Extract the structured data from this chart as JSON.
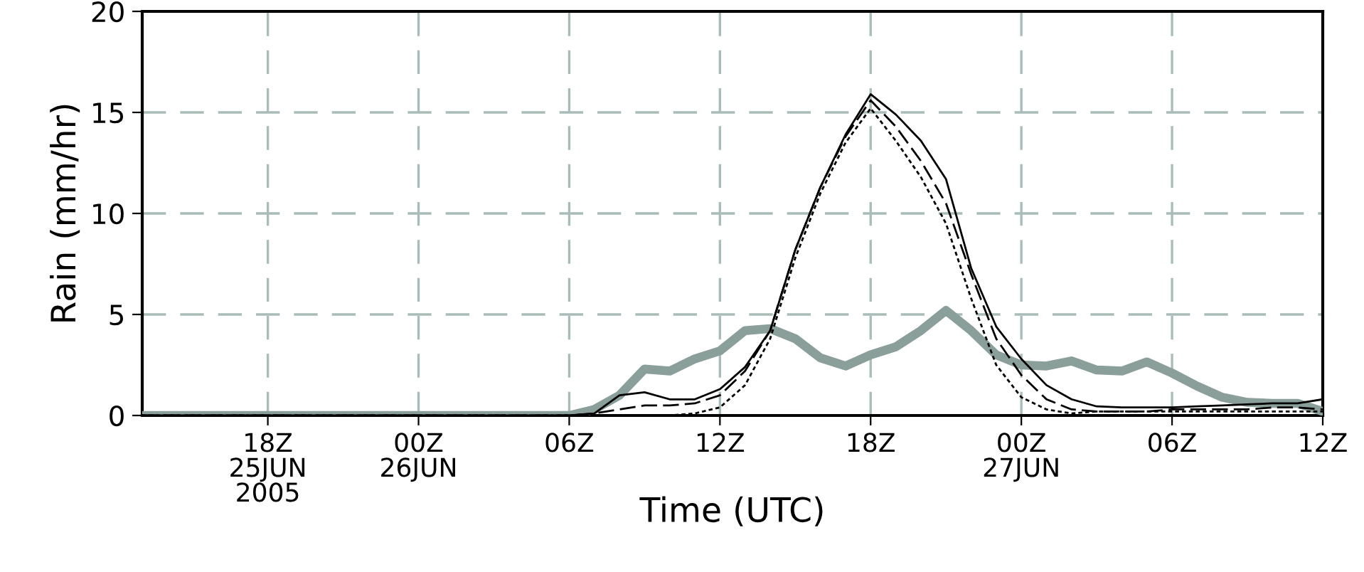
{
  "chart_data": {
    "type": "line",
    "xlabel": "Time (UTC)",
    "ylabel": "Rain (mm/hr)",
    "x": [
      "2005-06-25T13:00",
      "2005-06-25T14:00",
      "2005-06-25T15:00",
      "2005-06-25T16:00",
      "2005-06-25T17:00",
      "2005-06-25T18:00",
      "2005-06-25T19:00",
      "2005-06-25T20:00",
      "2005-06-25T21:00",
      "2005-06-25T22:00",
      "2005-06-25T23:00",
      "2005-06-26T00:00",
      "2005-06-26T01:00",
      "2005-06-26T02:00",
      "2005-06-26T03:00",
      "2005-06-26T04:00",
      "2005-06-26T05:00",
      "2005-06-26T06:00",
      "2005-06-26T07:00",
      "2005-06-26T08:00",
      "2005-06-26T09:00",
      "2005-06-26T10:00",
      "2005-06-26T11:00",
      "2005-06-26T12:00",
      "2005-06-26T13:00",
      "2005-06-26T14:00",
      "2005-06-26T15:00",
      "2005-06-26T16:00",
      "2005-06-26T17:00",
      "2005-06-26T18:00",
      "2005-06-26T19:00",
      "2005-06-26T20:00",
      "2005-06-26T21:00",
      "2005-06-26T22:00",
      "2005-06-26T23:00",
      "2005-06-27T00:00",
      "2005-06-27T01:00",
      "2005-06-27T02:00",
      "2005-06-27T03:00",
      "2005-06-27T04:00",
      "2005-06-27T05:00",
      "2005-06-27T06:00",
      "2005-06-27T07:00",
      "2005-06-27T08:00",
      "2005-06-27T09:00",
      "2005-06-27T10:00",
      "2005-06-27T11:00",
      "2005-06-27T12:00"
    ],
    "series": [
      {
        "color": "#8a9e9a",
        "line_style": "solid",
        "values": [
          0,
          0,
          0,
          0,
          0,
          0,
          0,
          0,
          0,
          0,
          0,
          0,
          0,
          0,
          0,
          0,
          0,
          0,
          0.3,
          1.0,
          2.3,
          2.2,
          2.8,
          3.2,
          4.2,
          4.3,
          3.8,
          2.85,
          2.45,
          3.0,
          3.4,
          4.2,
          5.2,
          4.2,
          3.0,
          2.5,
          2.45,
          2.7,
          2.25,
          2.2,
          2.65,
          2.1,
          1.45,
          0.9,
          0.65,
          0.6,
          0.6,
          0.2
        ]
      },
      {
        "color": "#000000",
        "line_style": "solid",
        "values": [
          0,
          0,
          0,
          0,
          0,
          0,
          0,
          0,
          0,
          0,
          0,
          0,
          0,
          0,
          0,
          0,
          0,
          0,
          0.1,
          1.0,
          1.15,
          0.8,
          0.8,
          1.3,
          2.4,
          4.2,
          8.2,
          11.3,
          13.9,
          15.9,
          14.9,
          13.6,
          11.7,
          7.3,
          4.4,
          2.8,
          1.5,
          0.8,
          0.45,
          0.4,
          0.4,
          0.4,
          0.45,
          0.5,
          0.55,
          0.6,
          0.6,
          0.8
        ]
      },
      {
        "color": "#000000",
        "line_style": "dashed",
        "values": [
          0,
          0,
          0,
          0,
          0,
          0,
          0,
          0,
          0,
          0,
          0,
          0,
          0,
          0,
          0,
          0,
          0,
          0,
          0.1,
          0.3,
          0.5,
          0.5,
          0.6,
          1.0,
          2.2,
          4.2,
          8.2,
          11.3,
          13.8,
          15.6,
          14.3,
          12.6,
          10.5,
          7.0,
          3.8,
          2.0,
          0.8,
          0.3,
          0.2,
          0.2,
          0.2,
          0.3,
          0.3,
          0.3,
          0.3,
          0.4,
          0.4,
          0.3
        ]
      },
      {
        "color": "#000000",
        "line_style": "dotted",
        "values": [
          0,
          0,
          0,
          0,
          0,
          0,
          0,
          0,
          0,
          0,
          0,
          0,
          0,
          0,
          0,
          0,
          0,
          0,
          0,
          0,
          0,
          0,
          0.1,
          0.4,
          1.5,
          3.8,
          7.8,
          11.0,
          13.5,
          15.2,
          13.6,
          11.8,
          9.5,
          5.8,
          2.5,
          0.9,
          0.3,
          0.1,
          0.2,
          0.2,
          0.2,
          0.2,
          0.2,
          0.2,
          0.2,
          0.2,
          0.2,
          0.2
        ]
      }
    ],
    "xlim": [
      "2005-06-25T13:00",
      "2005-06-27T12:00"
    ],
    "xticks": [
      {
        "value": "2005-06-25T18:00",
        "label": "18Z\n25JUN\n2005"
      },
      {
        "value": "2005-06-26T00:00",
        "label": "00Z\n26JUN"
      },
      {
        "value": "2005-06-26T06:00",
        "label": "06Z"
      },
      {
        "value": "2005-06-26T12:00",
        "label": "12Z"
      },
      {
        "value": "2005-06-26T18:00",
        "label": "18Z"
      },
      {
        "value": "2005-06-27T00:00",
        "label": "00Z\n27JUN"
      },
      {
        "value": "2005-06-27T06:00",
        "label": "06Z"
      },
      {
        "value": "2005-06-27T12:00",
        "label": "12Z"
      }
    ],
    "ylim": [
      0,
      20
    ],
    "yticks": [
      0,
      5,
      10,
      15,
      20
    ],
    "grid": true,
    "legend": false,
    "marker": "none"
  }
}
